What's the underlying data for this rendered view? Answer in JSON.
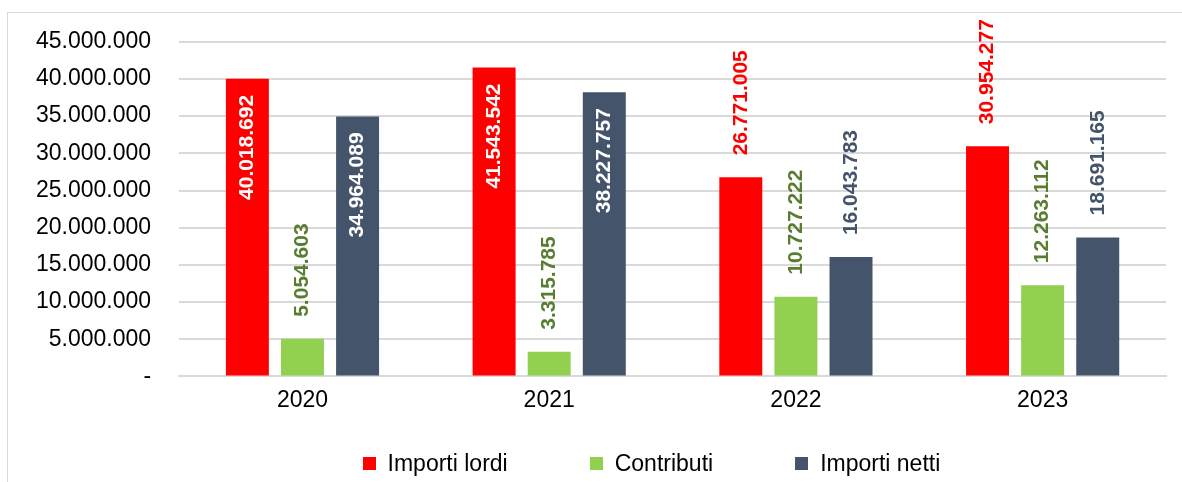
{
  "chart_data": {
    "type": "bar",
    "categories": [
      "2020",
      "2021",
      "2022",
      "2023"
    ],
    "series": [
      {
        "name": "Importi lordi",
        "color": "#ff0000",
        "values": [
          40018692,
          41543542,
          26771005,
          30954277
        ],
        "value_labels": [
          "40.018.692",
          "41.543.542",
          "26.771.005",
          "30.954.277"
        ]
      },
      {
        "name": "Contributi",
        "color": "#92d050",
        "values": [
          5054603,
          3315785,
          10727222,
          12263112
        ],
        "value_labels": [
          "5.054.603",
          "3.315.785",
          "10.727.222",
          "12.263.112"
        ]
      },
      {
        "name": "Importi netti",
        "color": "#44546a",
        "values": [
          34964089,
          38227757,
          16043783,
          18691165
        ],
        "value_labels": [
          "34.964.089",
          "38.227.757",
          "16.043.783",
          "18.691.165"
        ]
      }
    ],
    "ylim": [
      0,
      45000000
    ],
    "yticks": [
      {
        "value": 0,
        "label": "-"
      },
      {
        "value": 5000000,
        "label": "5.000.000"
      },
      {
        "value": 10000000,
        "label": "10.000.000"
      },
      {
        "value": 15000000,
        "label": "15.000.000"
      },
      {
        "value": 20000000,
        "label": "20.000.000"
      },
      {
        "value": 25000000,
        "label": "25.000.000"
      },
      {
        "value": 30000000,
        "label": "30.000.000"
      },
      {
        "value": 35000000,
        "label": "35.000.000"
      },
      {
        "value": 40000000,
        "label": "40.000.000"
      },
      {
        "value": 45000000,
        "label": "45.000.000"
      }
    ],
    "grid": "y",
    "legend": "bottom"
  }
}
